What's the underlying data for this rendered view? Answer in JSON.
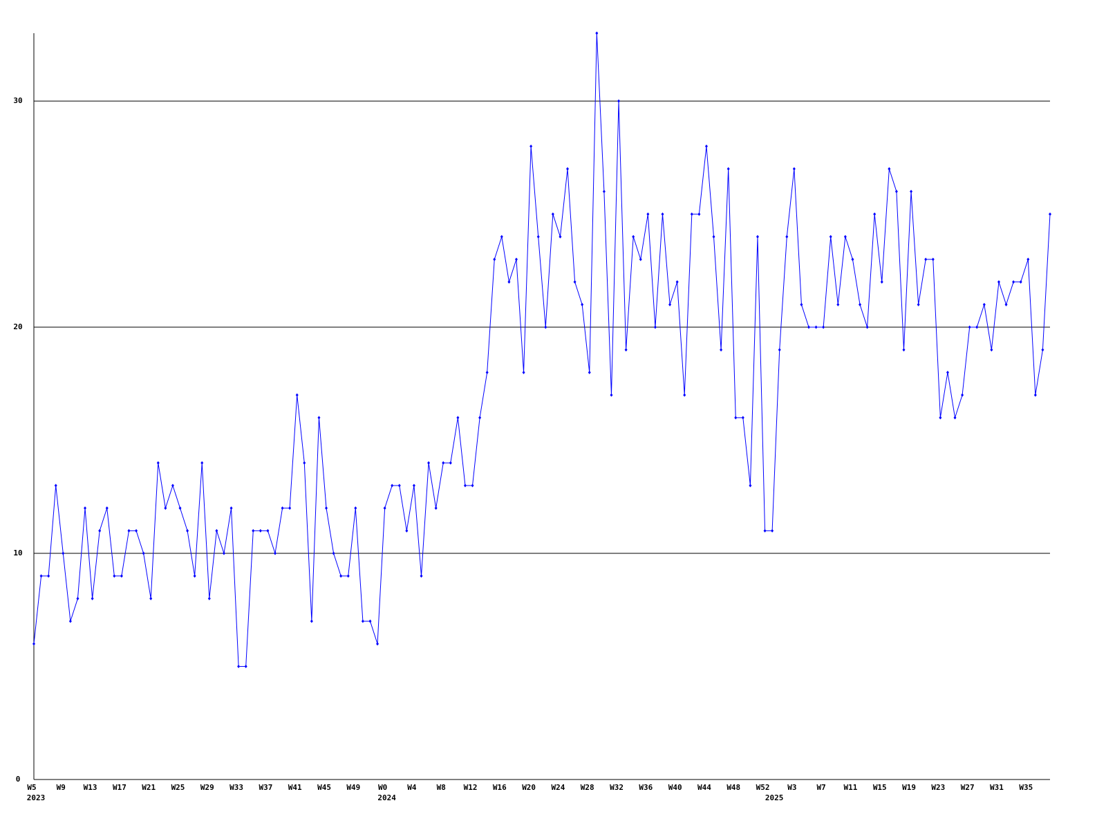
{
  "chart_data": {
    "type": "line",
    "categories": [
      "W5",
      null,
      null,
      null,
      "W9",
      null,
      null,
      null,
      "W13",
      null,
      null,
      null,
      "W17",
      null,
      null,
      null,
      "W21",
      null,
      null,
      null,
      "W25",
      null,
      null,
      null,
      "W29",
      null,
      null,
      null,
      "W33",
      null,
      null,
      null,
      "W37",
      null,
      null,
      null,
      "W41",
      null,
      null,
      null,
      "W45",
      null,
      null,
      null,
      "W49",
      null,
      null,
      null,
      "W0",
      null,
      null,
      null,
      "W4",
      null,
      null,
      null,
      "W8",
      null,
      null,
      null,
      "W12",
      null,
      null,
      null,
      "W16",
      null,
      null,
      null,
      "W20",
      null,
      null,
      null,
      "W24",
      null,
      null,
      null,
      "W28",
      null,
      null,
      null,
      "W32",
      null,
      null,
      null,
      "W36",
      null,
      null,
      null,
      "W40",
      null,
      null,
      null,
      "W44",
      null,
      null,
      null,
      "W48",
      null,
      null,
      null,
      "W52",
      null,
      null,
      null,
      "W3",
      null,
      null,
      null,
      "W7",
      null,
      null,
      null,
      "W11",
      null,
      null,
      null,
      "W15",
      null,
      null,
      null,
      "W19",
      null,
      null,
      null,
      "W23",
      null,
      null,
      null,
      "W27",
      null,
      null,
      null,
      "W31",
      null,
      null,
      null,
      "W35",
      null,
      null,
      null
    ],
    "category_years": [
      "2023",
      null,
      null,
      null,
      null,
      null,
      null,
      null,
      null,
      null,
      null,
      null,
      null,
      null,
      null,
      null,
      null,
      null,
      null,
      null,
      null,
      null,
      null,
      null,
      null,
      null,
      null,
      null,
      null,
      null,
      null,
      null,
      null,
      null,
      null,
      null,
      null,
      null,
      null,
      null,
      null,
      null,
      null,
      null,
      null,
      null,
      null,
      null,
      "2024",
      null,
      null,
      null,
      null,
      null,
      null,
      null,
      null,
      null,
      null,
      null,
      null,
      null,
      null,
      null,
      null,
      null,
      null,
      null,
      null,
      null,
      null,
      null,
      null,
      null,
      null,
      null,
      null,
      null,
      null,
      null,
      null,
      null,
      null,
      null,
      null,
      null,
      null,
      null,
      null,
      null,
      null,
      null,
      null,
      null,
      null,
      null,
      null,
      null,
      null,
      null,
      null,
      "2025",
      null,
      null,
      null,
      null,
      null,
      null,
      null,
      null,
      null,
      null,
      null,
      null,
      null,
      null,
      null,
      null,
      null,
      null,
      null,
      null,
      null,
      null,
      null,
      null,
      null,
      null,
      null,
      null,
      null,
      null,
      null,
      null,
      null,
      null,
      null,
      null,
      null,
      null
    ],
    "series": [
      {
        "color": "#0000ff",
        "values": [
          6,
          9,
          9,
          13,
          10,
          7,
          8,
          12,
          8,
          11,
          12,
          9,
          9,
          11,
          11,
          10,
          8,
          14,
          12,
          13,
          12,
          11,
          9,
          14,
          8,
          11,
          10,
          12,
          5,
          5,
          11,
          11,
          11,
          10,
          12,
          12,
          17,
          14,
          7,
          16,
          12,
          10,
          9,
          9,
          12,
          7,
          7,
          6,
          12,
          13,
          13,
          11,
          13,
          9,
          14,
          12,
          14,
          14,
          16,
          13,
          13,
          16,
          18,
          23,
          24,
          22,
          23,
          18,
          28,
          24,
          20,
          25,
          24,
          27,
          22,
          21,
          18,
          33,
          26,
          17,
          30,
          19,
          24,
          23,
          25,
          20,
          25,
          21,
          22,
          17,
          25,
          25,
          28,
          24,
          19,
          27,
          16,
          16,
          13,
          24,
          11,
          11,
          19,
          24,
          27,
          21,
          20,
          20,
          20,
          24,
          21,
          24,
          23,
          21,
          20,
          25,
          22,
          27,
          26,
          19,
          26,
          21,
          23,
          23,
          16,
          18,
          16,
          17,
          20,
          20,
          21,
          19,
          22,
          21,
          22,
          22,
          23,
          17,
          19,
          25
        ]
      }
    ],
    "ylim": [
      0,
      33
    ],
    "yticks": [
      0,
      10,
      20,
      30
    ],
    "grid": true
  }
}
